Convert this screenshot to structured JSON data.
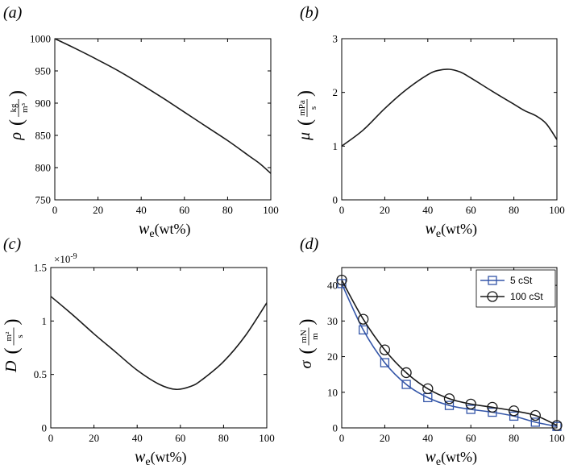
{
  "colors": {
    "black_series": "#1a1a1a",
    "blue_series": "#3355a8"
  },
  "xlabel_main": "w",
  "xlabel_sub": "e",
  "xlabel_unit": "(wt%)",
  "chart_data": [
    {
      "panel_label": "(a)",
      "type": "line",
      "ylabel_symbol": "ρ",
      "ylabel_unit_num": "kg",
      "ylabel_unit_den": "m³",
      "xlim": [
        0,
        100
      ],
      "ylim": [
        750,
        1000
      ],
      "xticks": [
        "0",
        "20",
        "40",
        "60",
        "80",
        "100"
      ],
      "yticks": [
        "750",
        "800",
        "850",
        "900",
        "950",
        "1000"
      ],
      "series": [
        {
          "color": "#1a1a1a",
          "marker": "none",
          "x": [
            0,
            10,
            20,
            30,
            40,
            50,
            60,
            70,
            80,
            90,
            95,
            100
          ],
          "y": [
            1000,
            984,
            967,
            949,
            929,
            908,
            886,
            864,
            842,
            818,
            806,
            791
          ]
        }
      ]
    },
    {
      "panel_label": "(b)",
      "type": "line",
      "ylabel_symbol": "μ",
      "ylabel_unit_num": "mPa",
      "ylabel_unit_den": "s",
      "xlim": [
        0,
        100
      ],
      "ylim": [
        0,
        3
      ],
      "xticks": [
        "0",
        "20",
        "40",
        "60",
        "80",
        "100"
      ],
      "yticks": [
        "0",
        "1",
        "2",
        "3"
      ],
      "series": [
        {
          "color": "#1a1a1a",
          "marker": "none",
          "x": [
            0,
            10,
            20,
            30,
            40,
            45,
            50,
            55,
            60,
            70,
            80,
            85,
            90,
            95,
            100
          ],
          "y": [
            1.0,
            1.3,
            1.7,
            2.05,
            2.33,
            2.41,
            2.43,
            2.38,
            2.27,
            2.02,
            1.78,
            1.66,
            1.57,
            1.42,
            1.12
          ]
        }
      ]
    },
    {
      "panel_label": "(c)",
      "type": "line",
      "ylabel_symbol": "D",
      "ylabel_unit_num": "m²",
      "ylabel_unit_den": "s",
      "exponent_label": "×10",
      "exponent_power": "-9",
      "xlim": [
        0,
        100
      ],
      "ylim": [
        0,
        1.5
      ],
      "xticks": [
        "0",
        "20",
        "40",
        "60",
        "80",
        "100"
      ],
      "yticks": [
        "0",
        "0.5",
        "1",
        "1.5"
      ],
      "series": [
        {
          "color": "#1a1a1a",
          "marker": "none",
          "x": [
            0,
            10,
            20,
            30,
            40,
            50,
            58,
            65,
            70,
            80,
            90,
            100
          ],
          "y": [
            1.23,
            1.06,
            0.88,
            0.71,
            0.54,
            0.41,
            0.36,
            0.39,
            0.45,
            0.62,
            0.86,
            1.17
          ]
        }
      ]
    },
    {
      "panel_label": "(d)",
      "type": "line",
      "ylabel_symbol": "σ",
      "ylabel_unit_num": "mN",
      "ylabel_unit_den": "m",
      "xlim": [
        0,
        100
      ],
      "ylim": [
        0,
        45
      ],
      "xticks": [
        "0",
        "20",
        "40",
        "60",
        "80",
        "100"
      ],
      "yticks": [
        "0",
        "10",
        "20",
        "30",
        "40"
      ],
      "legend_position": "top-right",
      "series": [
        {
          "name": "5 cSt",
          "color": "#3355a8",
          "marker": "square",
          "x": [
            0,
            10,
            20,
            30,
            40,
            50,
            60,
            70,
            80,
            90,
            100
          ],
          "y": [
            40.5,
            27.5,
            18.3,
            12.2,
            8.5,
            6.3,
            5.2,
            4.4,
            3.3,
            1.6,
            0.4
          ]
        },
        {
          "name": "100 cSt",
          "color": "#1a1a1a",
          "marker": "circle",
          "x": [
            0,
            10,
            20,
            30,
            40,
            50,
            60,
            70,
            80,
            90,
            100
          ],
          "y": [
            41.5,
            30.5,
            21.9,
            15.5,
            11.0,
            8.2,
            6.7,
            5.8,
            4.8,
            3.5,
            0.7
          ]
        }
      ]
    }
  ]
}
